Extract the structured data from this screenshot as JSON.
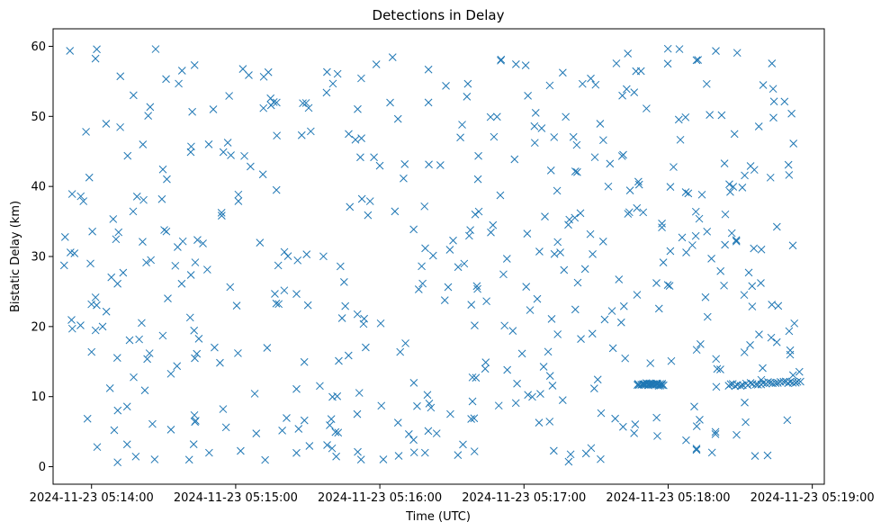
{
  "chart_data": {
    "type": "scatter",
    "title": "Detections in Delay",
    "xlabel": "Time (UTC)",
    "ylabel": "Bistatic Delay (km)",
    "marker": "x",
    "color": "#1f77b4",
    "grid": false,
    "legend": "none",
    "xlim": [
      "2024-11-23 05:13:44",
      "2024-11-23 05:19:05"
    ],
    "ylim": [
      -2.5,
      62.5
    ],
    "x_ticks": [
      "2024-11-23 05:14:00",
      "2024-11-23 05:15:00",
      "2024-11-23 05:16:00",
      "2024-11-23 05:17:00",
      "2024-11-23 05:18:00",
      "2024-11-23 05:19:00"
    ],
    "y_ticks": [
      0,
      10,
      20,
      30,
      40,
      50,
      60
    ],
    "start_time": "2024-11-23 05:13:48",
    "end_time": "2024-11-23 05:18:56",
    "point_count": 560,
    "track": {
      "segments": [
        {
          "start": "2024-11-23 05:17:47",
          "end": "2024-11-23 05:17:58",
          "y_start": 11.8,
          "y_end": 11.7
        },
        {
          "start": "2024-11-23 05:18:25",
          "end": "2024-11-23 05:18:55",
          "y_start": 11.6,
          "y_end": 12.2
        }
      ]
    }
  }
}
